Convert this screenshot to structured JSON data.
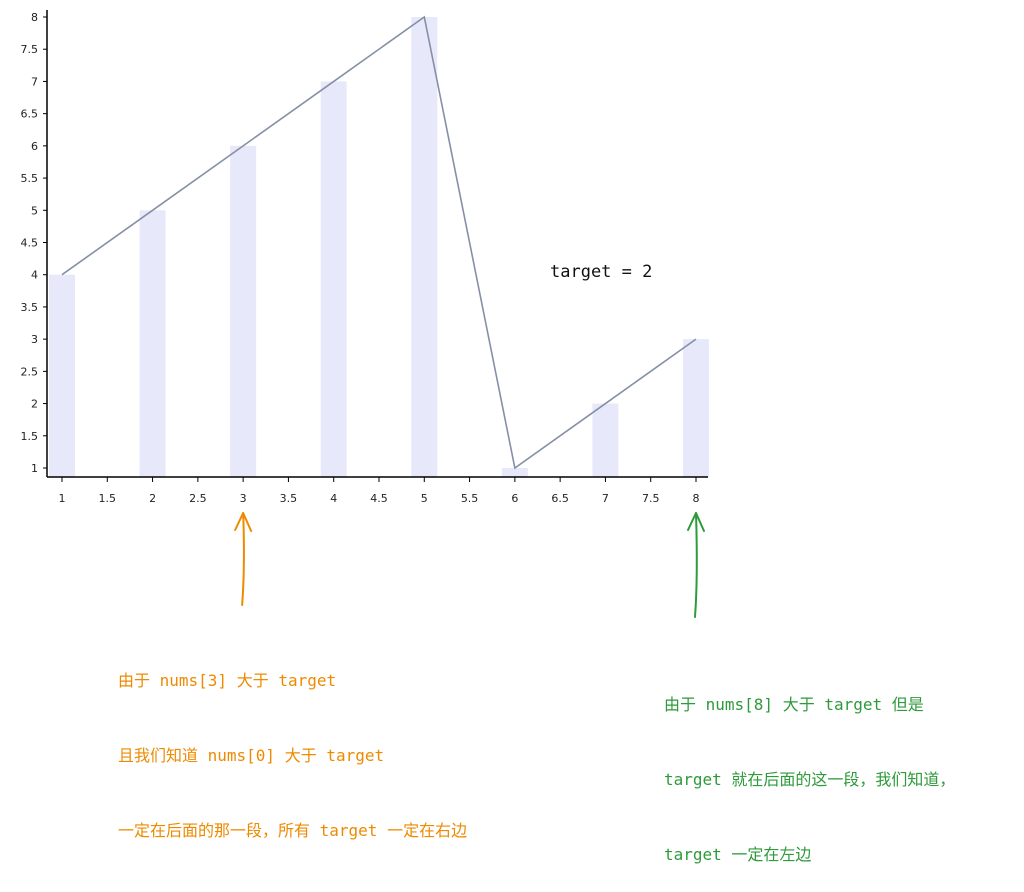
{
  "chart_data": {
    "type": "bar",
    "x": [
      1,
      2,
      3,
      4,
      5,
      6,
      7,
      8
    ],
    "values": [
      4,
      5,
      6,
      7,
      8,
      1,
      2,
      3
    ],
    "line_values": [
      4,
      5,
      6,
      7,
      8,
      1,
      2,
      3
    ],
    "xlim": [
      1,
      8
    ],
    "ylim": [
      1,
      8
    ],
    "x_ticks": [
      "1",
      "1.5",
      "2",
      "2.5",
      "3",
      "3.5",
      "4",
      "4.5",
      "5",
      "5.5",
      "6",
      "6.5",
      "7",
      "7.5",
      "8"
    ],
    "y_ticks": [
      "1",
      "1.5",
      "2",
      "2.5",
      "3",
      "3.5",
      "4",
      "4.5",
      "5",
      "5.5",
      "6",
      "6.5",
      "7",
      "7.5",
      "8"
    ],
    "title": "",
    "xlabel": "",
    "ylabel": "",
    "grid": false,
    "colors": {
      "bar": "#e8e8fb",
      "line": "#8590a6",
      "axis": "#000000"
    }
  },
  "annotations": {
    "target_label": "target = 2",
    "orange_note": {
      "color": "#ee8a00",
      "points_to_x": 3,
      "lines": [
        "由于 nums[3] 大于 target",
        "且我们知道 nums[0] 大于 target",
        "一定在后面的那一段，所有 target 一定在右边"
      ]
    },
    "green_note": {
      "color": "#2e9a3a",
      "points_to_x": 8,
      "lines": [
        "由于 nums[8] 大于 target 但是",
        "target 就在后面的这一段，我们知道，",
        "target 一定在左边"
      ]
    }
  }
}
